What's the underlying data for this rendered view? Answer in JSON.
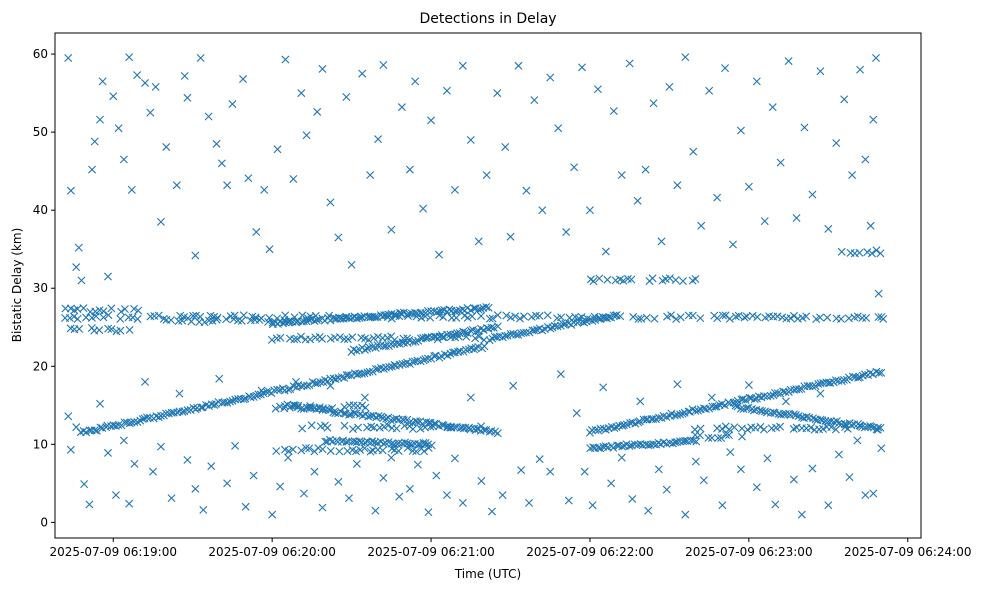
{
  "chart_data": {
    "type": "scatter",
    "title": "Detections in Delay",
    "xlabel": "Time (UTC)",
    "ylabel": "Bistatic Delay (km)",
    "x_axis": {
      "type": "time",
      "range": [
        "2025-07-09 06:18:38",
        "2025-07-09 06:24:05"
      ],
      "ticks": [
        "2025-07-09 06:19:00",
        "2025-07-09 06:20:00",
        "2025-07-09 06:21:00",
        "2025-07-09 06:22:00",
        "2025-07-09 06:23:00",
        "2025-07-09 06:24:00"
      ]
    },
    "y_axis": {
      "range": [
        -2.0,
        62.7
      ],
      "ticks": [
        0,
        10,
        20,
        30,
        40,
        50,
        60
      ]
    },
    "grid": false,
    "marker": "x",
    "color": "#1f77b4",
    "series": [
      {
        "tracks": [
          {
            "start": "2025-07-09 06:18:48",
            "end": "2025-07-09 06:21:20",
            "y_start": 11.5,
            "y_end": 22.5
          },
          {
            "start": "2025-07-09 06:22:00",
            "end": "2025-07-09 06:23:50",
            "y_start": 11.6,
            "y_end": 19.3
          },
          {
            "start": "2025-07-09 06:20:05",
            "end": "2025-07-09 06:21:25",
            "y_start": 15.0,
            "y_end": 11.5
          },
          {
            "start": "2025-07-09 06:22:55",
            "end": "2025-07-09 06:23:50",
            "y_start": 14.8,
            "y_end": 12.0
          },
          {
            "start": "2025-07-09 06:20:00",
            "end": "2025-07-09 06:21:22",
            "y_start": 25.5,
            "y_end": 27.5
          },
          {
            "start": "2025-07-09 06:20:30",
            "end": "2025-07-09 06:21:25",
            "y_start": 22.0,
            "y_end": 25.0
          },
          {
            "start": "2025-07-09 06:21:22",
            "end": "2025-07-09 06:22:10",
            "y_start": 23.5,
            "y_end": 26.5
          },
          {
            "start": "2025-07-09 06:20:20",
            "end": "2025-07-09 06:21:00",
            "y_start": 10.5,
            "y_end": 10.0
          },
          {
            "start": "2025-07-09 06:22:00",
            "end": "2025-07-09 06:22:40",
            "y_start": 9.5,
            "y_end": 10.5
          }
        ],
        "bands": [
          {
            "start": "2025-07-09 06:18:42",
            "end": "2025-07-09 06:23:52",
            "y": 26.3
          },
          {
            "start": "2025-07-09 06:18:42",
            "end": "2025-07-09 06:19:10",
            "y": 27.2
          },
          {
            "start": "2025-07-09 06:18:42",
            "end": "2025-07-09 06:19:10",
            "y": 24.7
          },
          {
            "start": "2025-07-09 06:19:20",
            "end": "2025-07-09 06:20:10",
            "y": 25.8
          },
          {
            "start": "2025-07-09 06:20:00",
            "end": "2025-07-09 06:21:20",
            "y": 23.6
          },
          {
            "start": "2025-07-09 06:20:10",
            "end": "2025-07-09 06:21:20",
            "y": 12.2
          },
          {
            "start": "2025-07-09 06:20:00",
            "end": "2025-07-09 06:20:40",
            "y": 14.8
          },
          {
            "start": "2025-07-09 06:20:00",
            "end": "2025-07-09 06:21:00",
            "y": 9.3
          },
          {
            "start": "2025-07-09 06:22:00",
            "end": "2025-07-09 06:22:40",
            "y": 31.1
          },
          {
            "start": "2025-07-09 06:22:40",
            "end": "2025-07-09 06:23:50",
            "y": 12.1
          },
          {
            "start": "2025-07-09 06:22:40",
            "end": "2025-07-09 06:23:00",
            "y": 11.0
          },
          {
            "start": "2025-07-09 06:23:35",
            "end": "2025-07-09 06:23:50",
            "y": 34.7
          }
        ],
        "points": [
          [
            "06:18:43",
            59.5
          ],
          [
            "06:18:44",
            42.5
          ],
          [
            "06:18:46",
            32.7
          ],
          [
            "06:18:47",
            35.2
          ],
          [
            "06:18:48",
            31.0
          ],
          [
            "06:18:52",
            45.2
          ],
          [
            "06:18:53",
            48.8
          ],
          [
            "06:18:55",
            51.6
          ],
          [
            "06:18:56",
            56.5
          ],
          [
            "06:18:58",
            31.5
          ],
          [
            "06:19:00",
            54.6
          ],
          [
            "06:19:02",
            50.5
          ],
          [
            "06:19:04",
            46.5
          ],
          [
            "06:19:06",
            59.6
          ],
          [
            "06:19:07",
            42.6
          ],
          [
            "06:19:09",
            57.3
          ],
          [
            "06:19:12",
            56.3
          ],
          [
            "06:19:14",
            52.5
          ],
          [
            "06:19:16",
            55.8
          ],
          [
            "06:19:18",
            38.5
          ],
          [
            "06:19:20",
            48.1
          ],
          [
            "06:19:24",
            43.2
          ],
          [
            "06:19:27",
            57.2
          ],
          [
            "06:19:28",
            54.4
          ],
          [
            "06:19:31",
            34.2
          ],
          [
            "06:19:33",
            59.5
          ],
          [
            "06:19:36",
            52.0
          ],
          [
            "06:19:39",
            48.5
          ],
          [
            "06:19:41",
            46.0
          ],
          [
            "06:19:43",
            43.2
          ],
          [
            "06:19:45",
            53.6
          ],
          [
            "06:19:49",
            56.8
          ],
          [
            "06:19:51",
            44.1
          ],
          [
            "06:19:54",
            37.2
          ],
          [
            "06:19:57",
            42.6
          ],
          [
            "06:19:59",
            35.0
          ],
          [
            "06:20:02",
            47.8
          ],
          [
            "06:20:05",
            59.3
          ],
          [
            "06:20:08",
            44.0
          ],
          [
            "06:20:11",
            55.0
          ],
          [
            "06:20:13",
            49.6
          ],
          [
            "06:20:17",
            52.6
          ],
          [
            "06:20:19",
            58.1
          ],
          [
            "06:20:22",
            41.0
          ],
          [
            "06:20:25",
            36.5
          ],
          [
            "06:20:28",
            54.5
          ],
          [
            "06:20:30",
            33.0
          ],
          [
            "06:20:34",
            57.5
          ],
          [
            "06:20:37",
            44.5
          ],
          [
            "06:20:40",
            49.1
          ],
          [
            "06:20:42",
            58.6
          ],
          [
            "06:20:45",
            37.5
          ],
          [
            "06:20:49",
            53.2
          ],
          [
            "06:20:52",
            45.2
          ],
          [
            "06:20:54",
            56.5
          ],
          [
            "06:20:57",
            40.2
          ],
          [
            "06:21:00",
            51.5
          ],
          [
            "06:21:03",
            34.3
          ],
          [
            "06:21:06",
            55.3
          ],
          [
            "06:21:09",
            42.6
          ],
          [
            "06:21:12",
            58.5
          ],
          [
            "06:21:15",
            49.0
          ],
          [
            "06:21:18",
            36.0
          ],
          [
            "06:21:21",
            44.5
          ],
          [
            "06:21:25",
            55.0
          ],
          [
            "06:21:28",
            48.1
          ],
          [
            "06:21:30",
            36.6
          ],
          [
            "06:21:33",
            58.5
          ],
          [
            "06:21:36",
            42.5
          ],
          [
            "06:21:39",
            54.1
          ],
          [
            "06:21:42",
            40.0
          ],
          [
            "06:21:45",
            57.0
          ],
          [
            "06:21:48",
            50.5
          ],
          [
            "06:21:51",
            37.2
          ],
          [
            "06:21:54",
            45.5
          ],
          [
            "06:21:57",
            58.3
          ],
          [
            "06:22:00",
            40.0
          ],
          [
            "06:22:03",
            55.5
          ],
          [
            "06:22:06",
            34.7
          ],
          [
            "06:22:09",
            52.7
          ],
          [
            "06:22:12",
            44.5
          ],
          [
            "06:22:15",
            58.8
          ],
          [
            "06:22:18",
            41.2
          ],
          [
            "06:22:21",
            45.2
          ],
          [
            "06:22:24",
            53.7
          ],
          [
            "06:22:27",
            36.0
          ],
          [
            "06:22:30",
            55.8
          ],
          [
            "06:22:33",
            43.2
          ],
          [
            "06:22:36",
            59.6
          ],
          [
            "06:22:39",
            47.5
          ],
          [
            "06:22:42",
            38.0
          ],
          [
            "06:22:45",
            55.3
          ],
          [
            "06:22:48",
            41.6
          ],
          [
            "06:22:51",
            58.2
          ],
          [
            "06:22:54",
            35.6
          ],
          [
            "06:22:57",
            50.2
          ],
          [
            "06:23:00",
            43.0
          ],
          [
            "06:23:03",
            56.5
          ],
          [
            "06:23:06",
            38.6
          ],
          [
            "06:23:09",
            53.2
          ],
          [
            "06:23:12",
            46.1
          ],
          [
            "06:23:15",
            59.1
          ],
          [
            "06:23:18",
            39.0
          ],
          [
            "06:23:21",
            50.6
          ],
          [
            "06:23:24",
            42.0
          ],
          [
            "06:23:27",
            57.8
          ],
          [
            "06:23:30",
            37.6
          ],
          [
            "06:23:33",
            48.6
          ],
          [
            "06:23:36",
            54.2
          ],
          [
            "06:23:39",
            44.5
          ],
          [
            "06:23:42",
            58.0
          ],
          [
            "06:23:44",
            46.5
          ],
          [
            "06:23:46",
            38.0
          ],
          [
            "06:23:47",
            51.6
          ],
          [
            "06:23:48",
            59.5
          ],
          [
            "06:23:49",
            29.3
          ],
          [
            "06:23:50",
            26.3
          ],
          [
            "06:18:43",
            13.6
          ],
          [
            "06:18:44",
            9.3
          ],
          [
            "06:18:46",
            12.2
          ],
          [
            "06:18:49",
            4.9
          ],
          [
            "06:18:51",
            2.3
          ],
          [
            "06:18:55",
            15.2
          ],
          [
            "06:18:58",
            8.9
          ],
          [
            "06:19:01",
            3.5
          ],
          [
            "06:19:04",
            10.5
          ],
          [
            "06:19:06",
            2.4
          ],
          [
            "06:19:08",
            7.5
          ],
          [
            "06:19:12",
            18.0
          ],
          [
            "06:19:15",
            6.5
          ],
          [
            "06:19:18",
            9.7
          ],
          [
            "06:19:22",
            3.1
          ],
          [
            "06:19:25",
            16.5
          ],
          [
            "06:19:28",
            8.0
          ],
          [
            "06:19:31",
            4.3
          ],
          [
            "06:19:34",
            1.6
          ],
          [
            "06:19:37",
            7.2
          ],
          [
            "06:19:40",
            18.4
          ],
          [
            "06:19:43",
            5.0
          ],
          [
            "06:19:46",
            9.8
          ],
          [
            "06:19:50",
            2.0
          ],
          [
            "06:19:53",
            6.0
          ],
          [
            "06:19:56",
            16.9
          ],
          [
            "06:20:00",
            1.0
          ],
          [
            "06:20:03",
            4.6
          ],
          [
            "06:20:06",
            8.3
          ],
          [
            "06:20:09",
            18.0
          ],
          [
            "06:20:12",
            3.7
          ],
          [
            "06:20:16",
            6.5
          ],
          [
            "06:20:19",
            1.9
          ],
          [
            "06:20:22",
            17.5
          ],
          [
            "06:20:25",
            5.2
          ],
          [
            "06:20:29",
            3.1
          ],
          [
            "06:20:32",
            7.5
          ],
          [
            "06:20:35",
            16.0
          ],
          [
            "06:20:39",
            1.5
          ],
          [
            "06:20:42",
            5.7
          ],
          [
            "06:20:45",
            8.3
          ],
          [
            "06:20:48",
            3.3
          ],
          [
            "06:20:52",
            4.3
          ],
          [
            "06:20:55",
            7.4
          ],
          [
            "06:20:59",
            1.3
          ],
          [
            "06:21:02",
            6.0
          ],
          [
            "06:21:06",
            3.5
          ],
          [
            "06:21:09",
            8.2
          ],
          [
            "06:21:12",
            2.5
          ],
          [
            "06:21:15",
            16.0
          ],
          [
            "06:21:19",
            5.3
          ],
          [
            "06:21:23",
            1.4
          ],
          [
            "06:21:27",
            3.5
          ],
          [
            "06:21:31",
            17.5
          ],
          [
            "06:21:34",
            6.7
          ],
          [
            "06:21:37",
            2.5
          ],
          [
            "06:21:41",
            8.1
          ],
          [
            "06:21:45",
            6.5
          ],
          [
            "06:21:49",
            19.0
          ],
          [
            "06:21:52",
            2.8
          ],
          [
            "06:21:55",
            14.0
          ],
          [
            "06:21:58",
            6.5
          ],
          [
            "06:22:01",
            2.2
          ],
          [
            "06:22:05",
            17.3
          ],
          [
            "06:22:08",
            5.0
          ],
          [
            "06:22:12",
            8.3
          ],
          [
            "06:22:16",
            3.0
          ],
          [
            "06:22:19",
            15.5
          ],
          [
            "06:22:22",
            1.5
          ],
          [
            "06:22:26",
            6.8
          ],
          [
            "06:22:29",
            4.2
          ],
          [
            "06:22:33",
            17.7
          ],
          [
            "06:22:36",
            1.0
          ],
          [
            "06:22:40",
            7.8
          ],
          [
            "06:22:43",
            5.4
          ],
          [
            "06:22:46",
            16.0
          ],
          [
            "06:22:50",
            2.2
          ],
          [
            "06:22:53",
            9.0
          ],
          [
            "06:22:57",
            6.8
          ],
          [
            "06:23:00",
            17.6
          ],
          [
            "06:23:03",
            4.5
          ],
          [
            "06:23:07",
            8.2
          ],
          [
            "06:23:10",
            2.3
          ],
          [
            "06:23:14",
            15.5
          ],
          [
            "06:23:17",
            5.5
          ],
          [
            "06:23:20",
            1.0
          ],
          [
            "06:23:24",
            6.9
          ],
          [
            "06:23:27",
            16.5
          ],
          [
            "06:23:30",
            2.2
          ],
          [
            "06:23:34",
            8.7
          ],
          [
            "06:23:38",
            5.8
          ],
          [
            "06:23:41",
            10.5
          ],
          [
            "06:23:44",
            3.5
          ],
          [
            "06:23:47",
            3.7
          ],
          [
            "06:23:50",
            9.5
          ]
        ]
      }
    ]
  }
}
